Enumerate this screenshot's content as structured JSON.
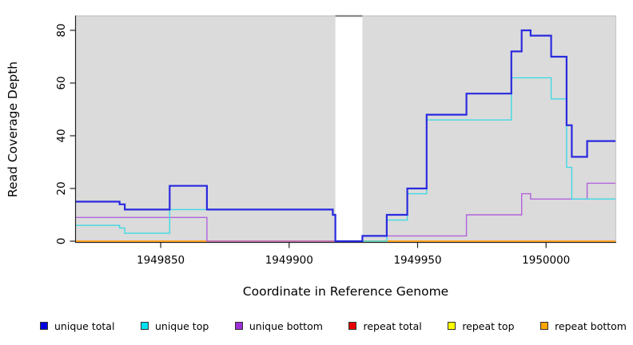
{
  "chart_data": {
    "type": "line",
    "subtype": "step",
    "title": "",
    "xlabel": "Coordinate in Reference Genome",
    "ylabel": "Read Coverage Depth",
    "xlim": [
      1949817,
      1950027
    ],
    "ylim": [
      0,
      85.45
    ],
    "x_ticks": [
      1949850,
      1949900,
      1949950,
      1950000
    ],
    "x_tick_labels": [
      "1949850",
      "1949900",
      "1949950",
      "1950000"
    ],
    "y_ticks": [
      0,
      20,
      40,
      60,
      80
    ],
    "y_tick_labels": [
      "0",
      "20",
      "40",
      "60",
      "80"
    ],
    "grid": false,
    "plot_bg_color": "#DBDBDB",
    "outer_bg_color": "#FFFFFF",
    "top_border_color": "#C8C8C8",
    "gap_band": {
      "x_start": 1949918,
      "x_end": 1949928.5,
      "fill": "#FFFFFF",
      "top_edge_color": "#8A8A8A"
    },
    "series": [
      {
        "name": "repeat total",
        "color": "#E00000",
        "width": 1.4,
        "points": [
          [
            1949817,
            0
          ],
          [
            1950027,
            0
          ]
        ]
      },
      {
        "name": "repeat top",
        "color": "#F2F200",
        "width": 1.4,
        "points": [
          [
            1949817,
            0
          ],
          [
            1950027,
            0
          ]
        ]
      },
      {
        "name": "repeat bottom",
        "color": "#FFA01E",
        "width": 1.7,
        "points": [
          [
            1949817,
            0
          ],
          [
            1950027,
            0
          ]
        ]
      },
      {
        "name": "unique bottom",
        "color": "#B163DC",
        "width": 1.4,
        "points": [
          [
            1949817,
            9
          ],
          [
            1949868,
            0
          ],
          [
            1949928.5,
            2
          ],
          [
            1949969,
            10
          ],
          [
            1949990.5,
            18
          ],
          [
            1949994,
            16
          ],
          [
            1950016,
            22
          ],
          [
            1950027,
            22
          ]
        ]
      },
      {
        "name": "unique top",
        "color": "#3FD9E4",
        "width": 1.4,
        "points": [
          [
            1949817,
            6
          ],
          [
            1949834,
            5
          ],
          [
            1949836,
            3
          ],
          [
            1949853.5,
            12
          ],
          [
            1949917,
            10
          ],
          [
            1949918,
            0
          ],
          [
            1949938,
            8
          ],
          [
            1949946,
            18
          ],
          [
            1949953.5,
            46
          ],
          [
            1949986.5,
            62
          ],
          [
            1950002,
            54
          ],
          [
            1950008,
            28
          ],
          [
            1950010,
            16
          ],
          [
            1950027,
            16
          ]
        ]
      },
      {
        "name": "unique total",
        "color": "#2A2ADF",
        "width": 2.2,
        "points": [
          [
            1949817,
            15
          ],
          [
            1949834,
            14
          ],
          [
            1949836,
            12
          ],
          [
            1949853.5,
            21
          ],
          [
            1949868,
            12
          ],
          [
            1949917,
            10
          ],
          [
            1949918,
            0
          ],
          [
            1949928.5,
            2
          ],
          [
            1949938,
            10
          ],
          [
            1949946,
            20
          ],
          [
            1949953.5,
            48
          ],
          [
            1949969,
            56
          ],
          [
            1949986.5,
            72
          ],
          [
            1949990.5,
            80
          ],
          [
            1949994,
            78
          ],
          [
            1950002,
            70
          ],
          [
            1950008,
            44
          ],
          [
            1950010,
            32
          ],
          [
            1950016,
            38
          ],
          [
            1950027,
            38
          ]
        ]
      }
    ],
    "legend": {
      "position": "bottom",
      "items": [
        {
          "label": "unique total",
          "fill": "#0000E0"
        },
        {
          "label": "unique top",
          "fill": "#00E0F0"
        },
        {
          "label": "unique bottom",
          "fill": "#9D2FD6"
        },
        {
          "label": "repeat total",
          "fill": "#E80000"
        },
        {
          "label": "repeat top",
          "fill": "#FFFF00"
        },
        {
          "label": "repeat bottom",
          "fill": "#FFA500"
        }
      ]
    }
  }
}
